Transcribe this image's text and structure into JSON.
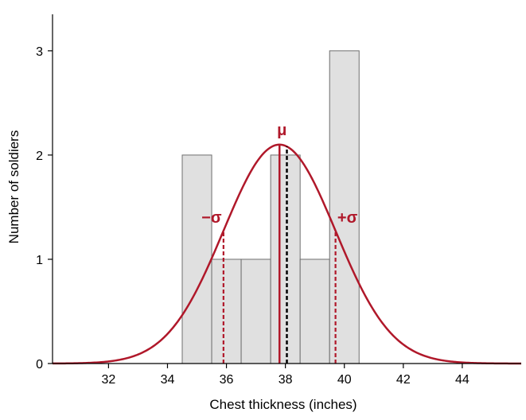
{
  "chart_data": {
    "type": "bar",
    "title": "",
    "xlabel": "Chest thickness (inches)",
    "ylabel": "Number of soldiers",
    "xlim": [
      30.1,
      46
    ],
    "ylim": [
      0,
      3.35
    ],
    "x_ticks": [
      "32",
      "34",
      "36",
      "38",
      "40",
      "42",
      "44"
    ],
    "y_ticks": [
      "0",
      "1",
      "2",
      "3"
    ],
    "bins": [
      {
        "from": 34.5,
        "to": 35.5,
        "count": 2
      },
      {
        "from": 35.5,
        "to": 36.5,
        "count": 1
      },
      {
        "from": 36.5,
        "to": 37.5,
        "count": 1
      },
      {
        "from": 37.5,
        "to": 38.5,
        "count": 2
      },
      {
        "from": 38.5,
        "to": 39.5,
        "count": 1
      },
      {
        "from": 39.5,
        "to": 40.5,
        "count": 3
      }
    ],
    "normal_curve": {
      "mean": 37.8,
      "sd": 1.9,
      "peak": 2.1
    },
    "mean_line_x": 37.8,
    "median_line_x": 38.05,
    "sigma_lines_x": [
      35.9,
      39.7
    ],
    "annotations": {
      "mu": "μ",
      "minus_sigma": "−σ",
      "plus_sigma": "+σ"
    },
    "colors": {
      "bar_fill": "#e0e0e0",
      "bar_stroke": "#6e6e6e",
      "curve": "#b0182a",
      "median": "#000000"
    },
    "grid": false,
    "legend": "none"
  }
}
